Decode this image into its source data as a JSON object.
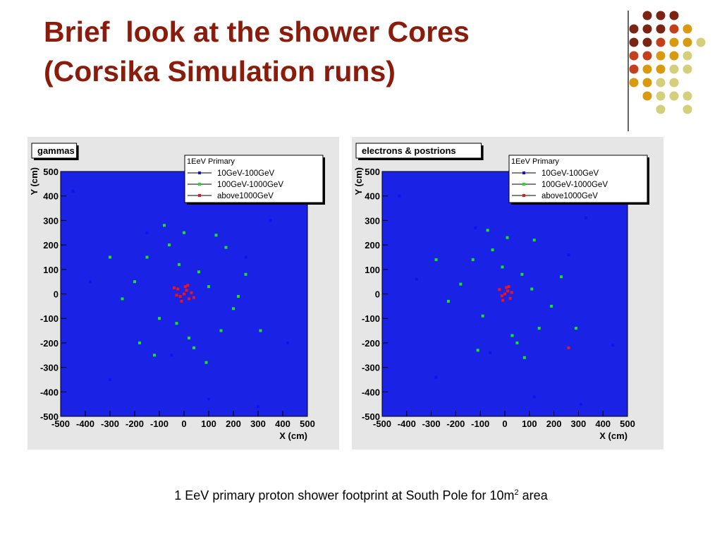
{
  "title_lines": [
    "Brief  look at the shower Cores",
    "(Corsika Simulation runs)"
  ],
  "caption": {
    "text": "1 EeV primary proton shower footprint at South Pole for 10m",
    "superscript": "2",
    "tail": "area"
  },
  "chart_data": [
    {
      "type": "scatter",
      "title": "gammas",
      "legend_title": "1EeV Primary",
      "xlabel": "X (cm)",
      "ylabel": "Y (cm)",
      "xlim": [
        -500,
        500
      ],
      "ylim": [
        -500,
        500
      ],
      "xticks": [
        -500,
        -400,
        -300,
        -200,
        -100,
        0,
        100,
        200,
        300,
        400,
        500
      ],
      "yticks": [
        -500,
        -400,
        -300,
        -200,
        -100,
        0,
        100,
        200,
        300,
        400,
        500
      ],
      "series": [
        {
          "name": "10GeV-100GeV",
          "color": "#0a14f0",
          "x": [
            -450,
            -300,
            -150,
            100,
            350,
            420,
            -380,
            250,
            -50,
            300
          ],
          "y": [
            420,
            -350,
            250,
            -430,
            300,
            -200,
            50,
            150,
            -250,
            -460
          ]
        },
        {
          "name": "100GeV-1000GeV",
          "color": "#19e619",
          "x": [
            -200,
            -150,
            -100,
            -60,
            -20,
            20,
            60,
            100,
            150,
            200,
            -250,
            250,
            -120,
            130,
            -80,
            90,
            -300,
            310,
            0,
            40,
            -180,
            170,
            -30,
            220
          ],
          "y": [
            50,
            150,
            -100,
            200,
            120,
            -180,
            90,
            30,
            -150,
            -60,
            -20,
            80,
            -250,
            240,
            280,
            -280,
            150,
            -150,
            250,
            -220,
            -200,
            190,
            -120,
            -10
          ]
        },
        {
          "name": "above1000GeV",
          "color": "#f01414",
          "x": [
            0,
            10,
            -15,
            20,
            -25,
            30,
            5,
            -10,
            15,
            -30,
            40,
            -40
          ],
          "y": [
            0,
            15,
            -10,
            -20,
            20,
            5,
            30,
            -30,
            35,
            -5,
            -15,
            25
          ]
        }
      ]
    },
    {
      "type": "scatter",
      "title": "electrons & postrions",
      "legend_title": "1EeV Primary",
      "xlabel": "X (cm)",
      "ylabel": "Y (cm)",
      "xlim": [
        -500,
        500
      ],
      "ylim": [
        -500,
        500
      ],
      "xticks": [
        -500,
        -400,
        -300,
        -200,
        -100,
        0,
        100,
        200,
        300,
        400,
        500
      ],
      "yticks": [
        -500,
        -400,
        -300,
        -200,
        -100,
        0,
        100,
        200,
        300,
        400,
        500
      ],
      "series": [
        {
          "name": "10GeV-100GeV",
          "color": "#0a14f0",
          "x": [
            -430,
            -280,
            -120,
            120,
            330,
            440,
            -360,
            260,
            -60,
            310
          ],
          "y": [
            400,
            -340,
            270,
            -420,
            310,
            -210,
            60,
            160,
            -240,
            -450
          ]
        },
        {
          "name": "100GeV-1000GeV",
          "color": "#19e619",
          "x": [
            -180,
            -130,
            -90,
            -50,
            -10,
            30,
            70,
            110,
            140,
            190,
            -230,
            230,
            -110,
            120,
            -70,
            80,
            -280,
            290,
            10,
            50
          ],
          "y": [
            40,
            140,
            -90,
            180,
            110,
            -170,
            80,
            20,
            -140,
            -50,
            -30,
            70,
            -230,
            220,
            260,
            -260,
            140,
            -140,
            230,
            -200
          ]
        },
        {
          "name": "above1000GeV",
          "color": "#f01414",
          "x": [
            0,
            12,
            -12,
            22,
            -22,
            28,
            6,
            -8,
            16,
            260
          ],
          "y": [
            0,
            12,
            -8,
            -18,
            18,
            6,
            26,
            -26,
            30,
            -220
          ]
        }
      ]
    }
  ]
}
